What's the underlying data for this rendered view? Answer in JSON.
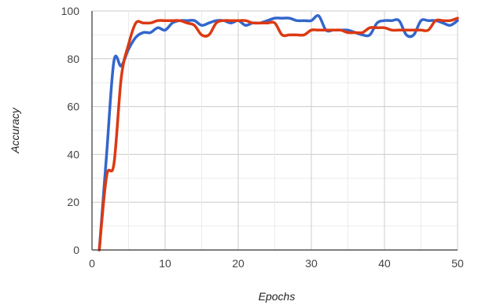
{
  "chart_data": {
    "type": "line",
    "title": "",
    "xlabel": "Epochs",
    "ylabel": "Accuracy",
    "xlim": [
      0,
      50
    ],
    "ylim": [
      0,
      100
    ],
    "x_ticks": [
      "0",
      "10",
      "20",
      "30",
      "40",
      "50"
    ],
    "y_ticks": [
      "0",
      "20",
      "40",
      "60",
      "80",
      "100"
    ],
    "grid": true,
    "legend": "none",
    "series": [
      {
        "color": "#3366CC",
        "x": [
          1,
          2,
          3,
          4,
          5,
          6,
          7,
          8,
          9,
          10,
          11,
          12,
          13,
          14,
          15,
          16,
          17,
          18,
          19,
          20,
          21,
          22,
          23,
          24,
          25,
          26,
          27,
          28,
          29,
          30,
          31,
          32,
          33,
          34,
          35,
          36,
          37,
          38,
          39,
          40,
          41,
          42,
          43,
          44,
          45,
          46,
          47,
          48,
          49,
          50
        ],
        "y": [
          0,
          40,
          79,
          77,
          84,
          89,
          91,
          91,
          93,
          92,
          95,
          96,
          96,
          96,
          94,
          95,
          96,
          96,
          95,
          96,
          94,
          95,
          95,
          96,
          97,
          97,
          97,
          96,
          96,
          96,
          98,
          92,
          92,
          92,
          92,
          91,
          90,
          90,
          95,
          96,
          96,
          96,
          90,
          90,
          96,
          96,
          96,
          95,
          94,
          96
        ]
      },
      {
        "color": "#DC3912",
        "x": [
          1,
          2,
          3,
          4,
          5,
          6,
          7,
          8,
          9,
          10,
          11,
          12,
          13,
          14,
          15,
          16,
          17,
          18,
          19,
          20,
          21,
          22,
          23,
          24,
          25,
          26,
          27,
          28,
          29,
          30,
          31,
          32,
          33,
          34,
          35,
          36,
          37,
          38,
          39,
          40,
          41,
          42,
          43,
          44,
          45,
          46,
          47,
          48,
          49,
          50
        ],
        "y": [
          0,
          31,
          36,
          72,
          86,
          95,
          95,
          95,
          96,
          96,
          96,
          96,
          95,
          94,
          90,
          90,
          95,
          96,
          96,
          96,
          96,
          95,
          95,
          95,
          95,
          90,
          90,
          90,
          90,
          92,
          92,
          92,
          92,
          92,
          91,
          91,
          91,
          93,
          93,
          93,
          92,
          92,
          92,
          92,
          92,
          92,
          96,
          96,
          96,
          97
        ]
      }
    ]
  }
}
